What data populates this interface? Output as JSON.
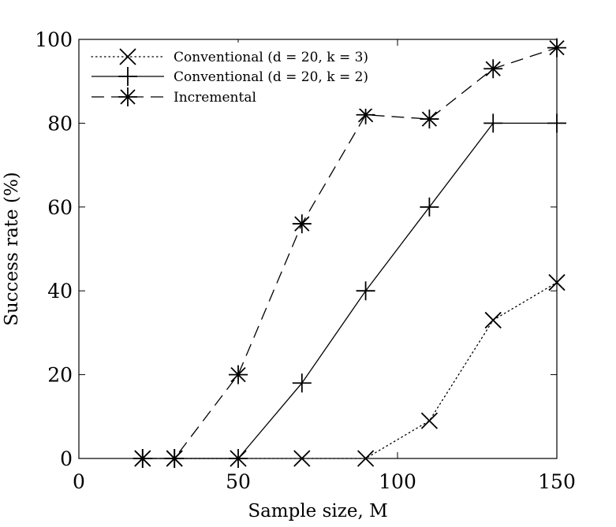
{
  "chart_data": {
    "type": "line",
    "xlabel": "Sample size, M",
    "ylabel": "Success rate (%)",
    "xlim": [
      0,
      150
    ],
    "ylim": [
      0,
      100
    ],
    "xticks": [
      0,
      50,
      100,
      150
    ],
    "yticks": [
      0,
      20,
      40,
      60,
      80,
      100
    ],
    "xtick_labels": [
      "0",
      "50",
      "100",
      "150"
    ],
    "ytick_labels": [
      "0",
      "20",
      "40",
      "60",
      "80",
      "100"
    ],
    "grid": false,
    "legend_position": "top-left",
    "series": [
      {
        "name": "Conventional (d = 20, k = 3)",
        "line_style": "dotted",
        "marker": "x",
        "x": [
          20,
          30,
          50,
          70,
          90,
          110,
          130,
          150
        ],
        "y": [
          0,
          0,
          0,
          0,
          0,
          9,
          33,
          42
        ]
      },
      {
        "name": "Conventional (d = 20, k = 2)",
        "line_style": "solid",
        "marker": "plus",
        "x": [
          20,
          30,
          50,
          70,
          90,
          110,
          130,
          150
        ],
        "y": [
          0,
          0,
          0,
          18,
          40,
          60,
          80,
          80
        ]
      },
      {
        "name": "Incremental",
        "line_style": "dashed",
        "marker": "asterisk",
        "x": [
          20,
          30,
          50,
          70,
          90,
          110,
          130,
          150
        ],
        "y": [
          0,
          0,
          20,
          56,
          82,
          81,
          93,
          98
        ]
      }
    ]
  }
}
